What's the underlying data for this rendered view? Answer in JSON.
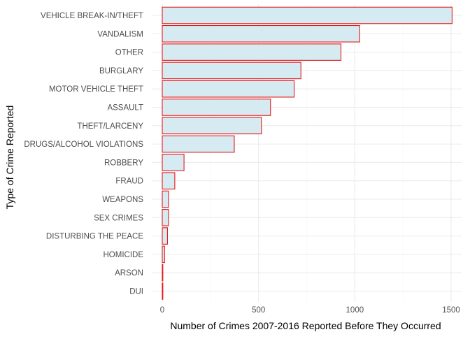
{
  "chart_data": {
    "type": "bar",
    "orientation": "horizontal",
    "categories": [
      "VEHICLE BREAK-IN/THEFT",
      "VANDALISM",
      "OTHER",
      "BURGLARY",
      "MOTOR VEHICLE THEFT",
      "ASSAULT",
      "THEFT/LARCENY",
      "DRUGS/ALCOHOL VIOLATIONS",
      "ROBBERY",
      "FRAUD",
      "WEAPONS",
      "SEX CRIMES",
      "DISTURBING THE PEACE",
      "HOMICIDE",
      "ARSON",
      "DUI"
    ],
    "values": [
      1505,
      1025,
      928,
      720,
      685,
      562,
      515,
      374,
      113,
      65,
      32,
      32,
      27,
      12,
      3,
      3
    ],
    "xlabel": "Number of Crimes 2007-2016 Reported Before They Occurred",
    "ylabel": "Type of Crime Reported",
    "xlim": [
      0,
      1570
    ],
    "xticks": [
      0,
      500,
      1000,
      1500
    ],
    "xtick_labels": [
      "0",
      "500",
      "1000",
      "1500"
    ],
    "grid": true,
    "bar_fill": "#d6eaf1",
    "bar_outline": "#e41a1c",
    "background": "#ffffff"
  }
}
